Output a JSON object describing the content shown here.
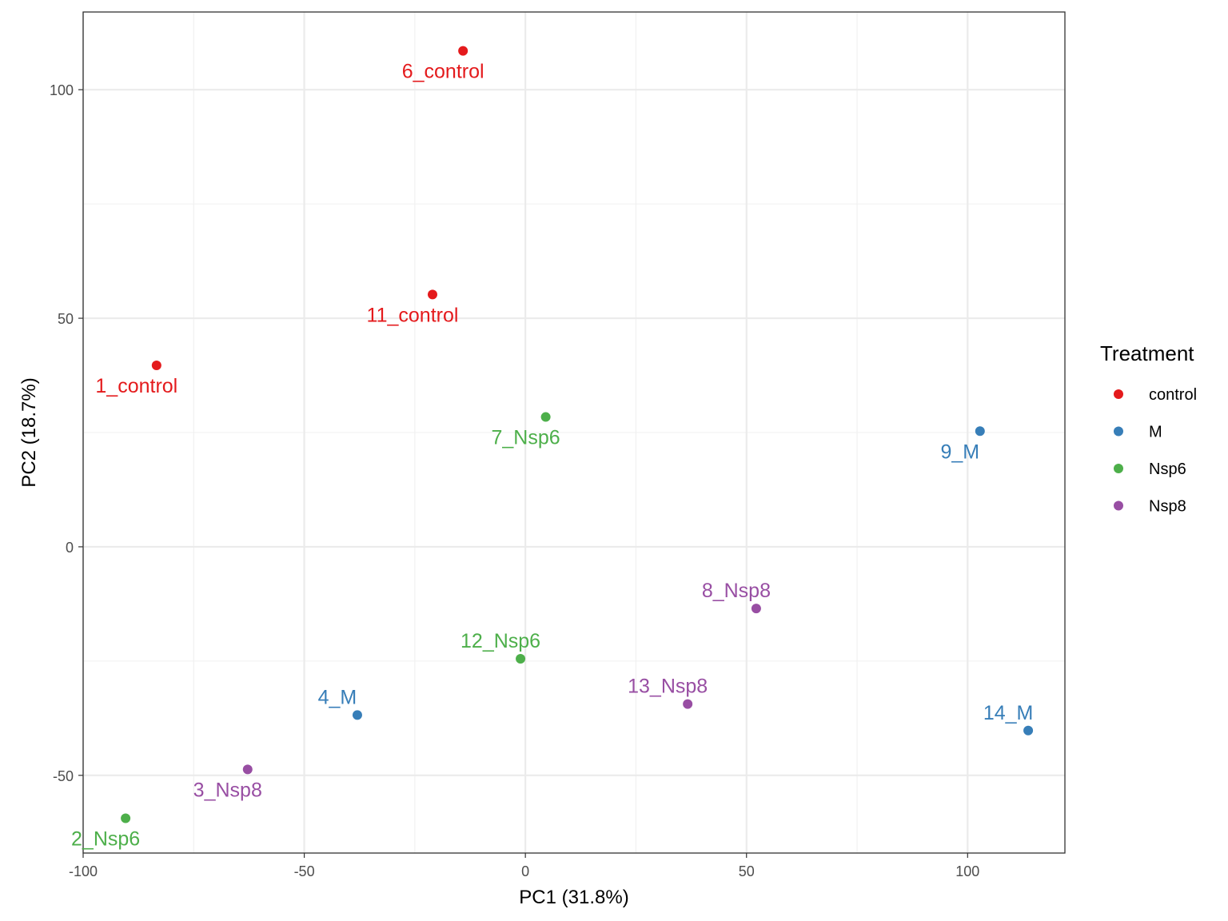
{
  "chart_data": {
    "type": "scatter",
    "title": "",
    "xlabel": "PC1 (31.8%)",
    "ylabel": "PC2 (18.7%)",
    "xlim": [
      -100,
      122
    ],
    "ylim": [
      -67,
      117
    ],
    "x_ticks": [
      -100,
      -50,
      0,
      50,
      100
    ],
    "x_tick_labels": [
      "-100",
      "-50",
      "0",
      "50",
      "100"
    ],
    "y_ticks": [
      -50,
      0,
      50,
      100
    ],
    "y_tick_labels": [
      "-50",
      "0",
      "50",
      "100"
    ],
    "grid": true,
    "legend": {
      "title": "Treatment",
      "position": "right",
      "entries": [
        {
          "name": "control",
          "color": "#E41A1C"
        },
        {
          "name": "M",
          "color": "#377EB8"
        },
        {
          "name": "Nsp6",
          "color": "#4DAF4A"
        },
        {
          "name": "Nsp8",
          "color": "#984EA3"
        }
      ]
    },
    "points": [
      {
        "label": "1_control",
        "group": "control",
        "x": -83.4,
        "y": 39.7,
        "label_pos": "below"
      },
      {
        "label": "6_control",
        "group": "control",
        "x": -14.1,
        "y": 108.5,
        "label_pos": "below"
      },
      {
        "label": "11_control",
        "group": "control",
        "x": -21.0,
        "y": 55.2,
        "label_pos": "below"
      },
      {
        "label": "4_M",
        "group": "M",
        "x": -38.0,
        "y": -36.8,
        "label_pos": "above"
      },
      {
        "label": "9_M",
        "group": "M",
        "x": 102.8,
        "y": 25.3,
        "label_pos": "below"
      },
      {
        "label": "14_M",
        "group": "M",
        "x": 113.7,
        "y": -40.2,
        "label_pos": "above"
      },
      {
        "label": "2_Nsp6",
        "group": "Nsp6",
        "x": -90.4,
        "y": -59.4,
        "label_pos": "below"
      },
      {
        "label": "7_Nsp6",
        "group": "Nsp6",
        "x": 4.6,
        "y": 28.4,
        "label_pos": "below"
      },
      {
        "label": "12_Nsp6",
        "group": "Nsp6",
        "x": -1.1,
        "y": -24.5,
        "label_pos": "above"
      },
      {
        "label": "3_Nsp8",
        "group": "Nsp8",
        "x": -62.8,
        "y": -48.7,
        "label_pos": "below"
      },
      {
        "label": "8_Nsp8",
        "group": "Nsp8",
        "x": 52.2,
        "y": -13.5,
        "label_pos": "above"
      },
      {
        "label": "13_Nsp8",
        "group": "Nsp8",
        "x": 36.7,
        "y": -34.4,
        "label_pos": "above"
      }
    ]
  }
}
